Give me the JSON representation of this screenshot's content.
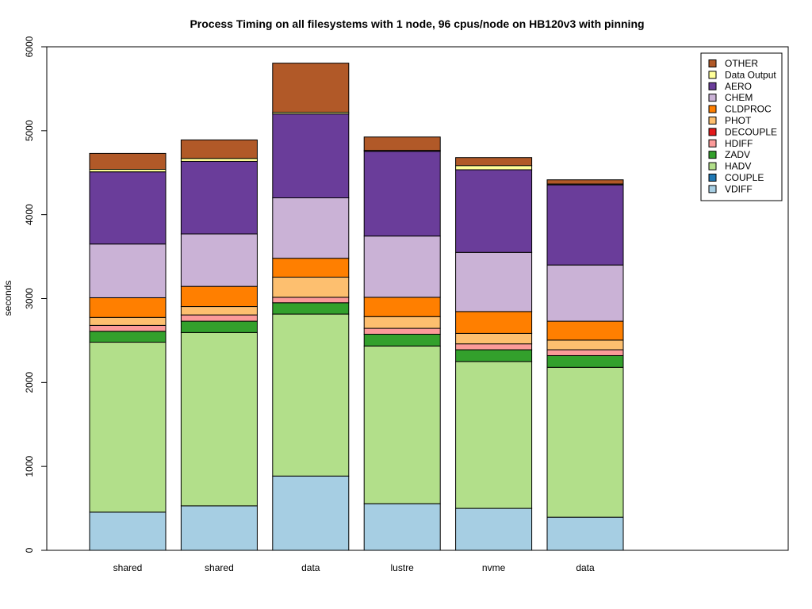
{
  "chart_data": {
    "type": "bar",
    "stacked": true,
    "title": "Process Timing on all filesystems with 1 node, 96 cpus/node on HB120v3 with pinning",
    "xlabel": "",
    "ylabel": "seconds",
    "ylim": [
      0,
      6000
    ],
    "yticks": [
      0,
      1000,
      2000,
      3000,
      4000,
      5000,
      6000
    ],
    "grid": false,
    "legend_position": "top-right",
    "categories": [
      "shared",
      "shared",
      "data",
      "lustre",
      "nvme",
      "data"
    ],
    "series": [
      {
        "name": "VDIFF",
        "color": "#a6cee3",
        "values": [
          455,
          530,
          885,
          555,
          500,
          395
        ]
      },
      {
        "name": "COUPLE",
        "color": "#1f78b4",
        "values": [
          0,
          0,
          0,
          0,
          0,
          0
        ]
      },
      {
        "name": "HADV",
        "color": "#b2df8a",
        "values": [
          2025,
          2065,
          1930,
          1880,
          1750,
          1785
        ]
      },
      {
        "name": "ZADV",
        "color": "#33a02c",
        "values": [
          130,
          135,
          135,
          140,
          140,
          140
        ]
      },
      {
        "name": "HDIFF",
        "color": "#fb9a99",
        "values": [
          70,
          75,
          65,
          70,
          70,
          70
        ]
      },
      {
        "name": "DECOUPLE",
        "color": "#e31a1c",
        "values": [
          0,
          0,
          0,
          0,
          0,
          0
        ]
      },
      {
        "name": "PHOT",
        "color": "#fdbf6f",
        "values": [
          95,
          100,
          240,
          140,
          125,
          115
        ]
      },
      {
        "name": "CLDPROC",
        "color": "#ff7f00",
        "values": [
          235,
          240,
          225,
          230,
          260,
          225
        ]
      },
      {
        "name": "CHEM",
        "color": "#cab2d6",
        "values": [
          640,
          625,
          720,
          730,
          705,
          670
        ]
      },
      {
        "name": "AERO",
        "color": "#6a3d9a",
        "values": [
          860,
          865,
          1000,
          1010,
          985,
          955
        ]
      },
      {
        "name": "Data Output",
        "color": "#ffff99",
        "values": [
          30,
          35,
          20,
          10,
          50,
          10
        ]
      },
      {
        "name": "OTHER",
        "color": "#b15928",
        "values": [
          190,
          220,
          585,
          160,
          95,
          50
        ]
      }
    ]
  }
}
